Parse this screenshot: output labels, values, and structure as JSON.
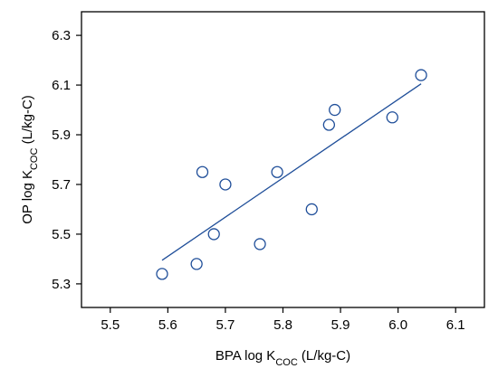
{
  "chart_data": {
    "type": "scatter",
    "title": "",
    "xlabel": {
      "prefix": "BPA log K",
      "subscript": "COC",
      "suffix": " (L/kg-C)"
    },
    "ylabel": {
      "prefix": "OP log K",
      "subscript": "COC",
      "suffix": " (L/kg-C)"
    },
    "xlim": [
      5.45,
      6.15
    ],
    "ylim": [
      5.205,
      6.395
    ],
    "xticks": [
      5.5,
      5.6,
      5.7,
      5.8,
      5.9,
      6.0,
      6.1
    ],
    "yticks": [
      5.3,
      5.5,
      5.7,
      5.9,
      6.1,
      6.3
    ],
    "xtick_labels": [
      "5.5",
      "5.6",
      "5.7",
      "5.8",
      "5.9",
      "6.0",
      "6.1"
    ],
    "ytick_labels": [
      "5.3",
      "5.5",
      "5.7",
      "5.9",
      "6.1",
      "6.3"
    ],
    "grid": false,
    "points": [
      {
        "x": 5.59,
        "y": 5.34
      },
      {
        "x": 5.65,
        "y": 5.38
      },
      {
        "x": 5.66,
        "y": 5.75
      },
      {
        "x": 5.68,
        "y": 5.5
      },
      {
        "x": 5.7,
        "y": 5.7
      },
      {
        "x": 5.76,
        "y": 5.46
      },
      {
        "x": 5.79,
        "y": 5.75
      },
      {
        "x": 5.85,
        "y": 5.6
      },
      {
        "x": 5.88,
        "y": 5.94
      },
      {
        "x": 5.89,
        "y": 6.0
      },
      {
        "x": 5.99,
        "y": 5.97
      },
      {
        "x": 6.04,
        "y": 6.14
      }
    ],
    "fit_line": {
      "x": [
        5.59,
        6.04
      ],
      "y": [
        5.395,
        6.105
      ]
    },
    "colors": {
      "marker": "#1f4e99",
      "line": "#1f4e99",
      "axis": "#000000"
    }
  }
}
